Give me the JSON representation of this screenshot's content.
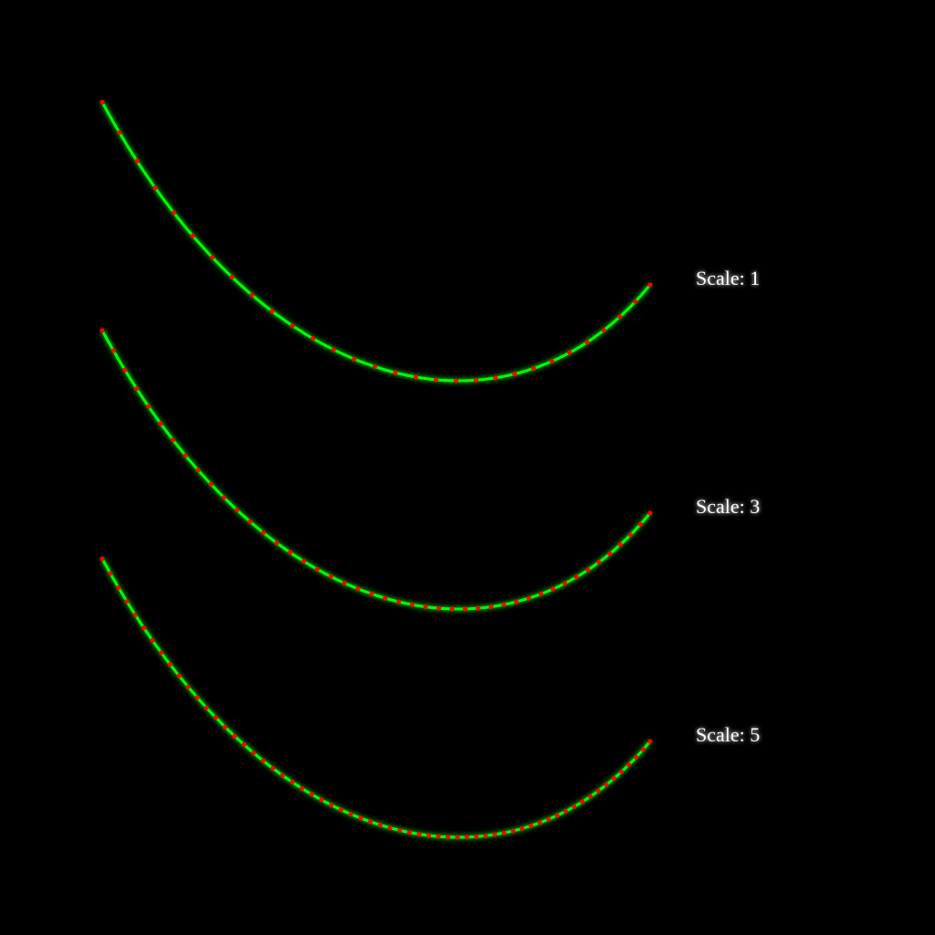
{
  "colors": {
    "background": "#000000",
    "curve": "#00ff00",
    "point": "#ff0000",
    "label": "#ffffff"
  },
  "curves": [
    {
      "label": "Scale: 1",
      "scale": 1,
      "point_count": 30
    },
    {
      "label": "Scale: 3",
      "scale": 3,
      "point_count": 45
    },
    {
      "label": "Scale: 5",
      "scale": 5,
      "point_count": 62
    }
  ]
}
